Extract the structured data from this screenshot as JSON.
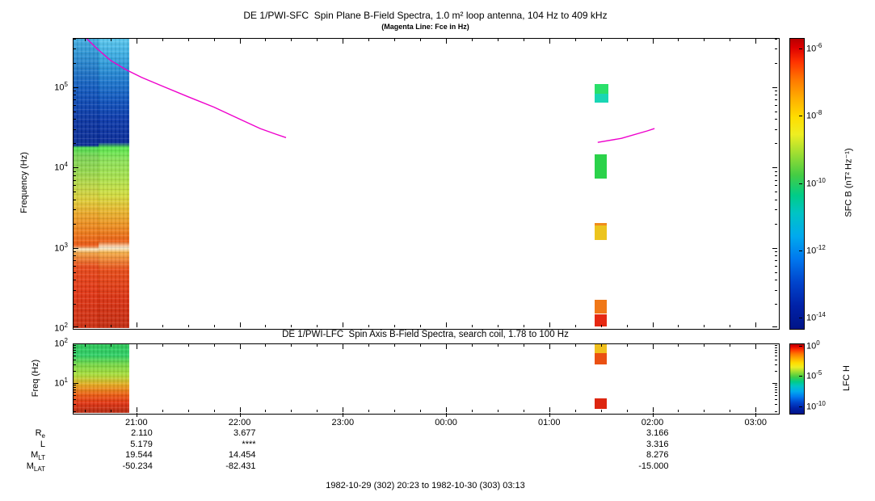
{
  "header": {
    "title": "DE 1/PWI-SFC  Spin Plane B-Field Spectra, 1.0 m² loop antenna, 104 Hz to 409 kHz",
    "subtitle": "(Magenta Line: Fce in Hz)"
  },
  "footer": {
    "date_range": "1982-10-29 (302) 20:23 to 1982-10-30 (303) 03:13"
  },
  "time_axis": {
    "start_hour": 20.383,
    "end_hour": 27.217,
    "ticks": [
      {
        "hour": 21,
        "label": "21:00"
      },
      {
        "hour": 22,
        "label": "22:00"
      },
      {
        "hour": 23,
        "label": "23:00"
      },
      {
        "hour": 24,
        "label": "00:00"
      },
      {
        "hour": 25,
        "label": "01:00"
      },
      {
        "hour": 26,
        "label": "02:00"
      },
      {
        "hour": 27,
        "label": "03:00"
      }
    ]
  },
  "chart_data": [
    {
      "type": "heatmap",
      "title": "DE 1/PWI-SFC  Spin Plane B-Field Spectra, 1.0 m² loop antenna, 104 Hz to 409 kHz",
      "subtitle": "(Magenta Line: Fce in Hz)",
      "ylabel": "Frequency (Hz)",
      "y_scale": "log",
      "freq_range": [
        100,
        409000
      ],
      "ytick_exponents": [
        2,
        3,
        4,
        5
      ],
      "x_tick_labels": [
        "21:00",
        "22:00",
        "23:00",
        "00:00",
        "01:00",
        "02:00",
        "03:00"
      ],
      "colorbar": {
        "label": "SFC B (nT² Hz⁻¹)",
        "tick_exponents": [
          -6,
          -8,
          -10,
          -12,
          -14
        ],
        "range_exp": [
          -5.7,
          -14.3
        ],
        "gradient": [
          [
            0,
            "#b80000"
          ],
          [
            0.03,
            "#dd0000"
          ],
          [
            0.08,
            "#ff3300"
          ],
          [
            0.14,
            "#ff7700"
          ],
          [
            0.2,
            "#ffaa00"
          ],
          [
            0.27,
            "#ffdd00"
          ],
          [
            0.33,
            "#eeee22"
          ],
          [
            0.4,
            "#99dd33"
          ],
          [
            0.47,
            "#44cc44"
          ],
          [
            0.54,
            "#00cc88"
          ],
          [
            0.6,
            "#00c4c4"
          ],
          [
            0.68,
            "#00aaee"
          ],
          [
            0.76,
            "#0077ee"
          ],
          [
            0.84,
            "#0044cc"
          ],
          [
            0.92,
            "#0022a8"
          ],
          [
            1,
            "#001488"
          ]
        ]
      },
      "fce_color": "#ee00cc",
      "fce_segments": [
        [
          [
            20.52,
            400000
          ],
          [
            20.62,
            300000
          ],
          [
            20.75,
            215000
          ],
          [
            20.9,
            165000
          ],
          [
            21.05,
            132000
          ],
          [
            21.25,
            103000
          ],
          [
            21.5,
            76000
          ],
          [
            21.75,
            56500
          ],
          [
            22.0,
            40000
          ],
          [
            22.2,
            30500
          ],
          [
            22.35,
            26000
          ],
          [
            22.45,
            23500
          ]
        ],
        [
          [
            25.47,
            20500
          ],
          [
            25.7,
            23000
          ],
          [
            25.95,
            28500
          ],
          [
            26.02,
            30500
          ]
        ]
      ],
      "patches": [
        {
          "t0": 20.383,
          "t1": 20.633,
          "stops": [
            [
              0,
              "#45b0e2"
            ],
            [
              0.05,
              "#2f96d6"
            ],
            [
              0.11,
              "#2078c8"
            ],
            [
              0.17,
              "#125cc0"
            ],
            [
              0.23,
              "#0d46b2"
            ],
            [
              0.29,
              "#0b34a2"
            ],
            [
              0.37,
              "#0a2c96"
            ],
            [
              0.378,
              "#4ce04c"
            ],
            [
              0.41,
              "#7cd455"
            ],
            [
              0.46,
              "#94d84e"
            ],
            [
              0.51,
              "#bcd846"
            ],
            [
              0.56,
              "#e0ce38"
            ],
            [
              0.61,
              "#eca428"
            ],
            [
              0.67,
              "#ee7c1a"
            ],
            [
              0.715,
              "#ec5814"
            ],
            [
              0.728,
              "#f8e8c0"
            ],
            [
              0.742,
              "#f0a040"
            ],
            [
              0.79,
              "#e8491a"
            ],
            [
              0.88,
              "#e23514"
            ],
            [
              1,
              "#cc2f12"
            ]
          ]
        },
        {
          "t0": 20.633,
          "t1": 20.933,
          "stops": [
            [
              0,
              "#5cc8ee"
            ],
            [
              0.05,
              "#40b2e6"
            ],
            [
              0.1,
              "#2a94d8"
            ],
            [
              0.16,
              "#1a72cc"
            ],
            [
              0.22,
              "#0f52bc"
            ],
            [
              0.28,
              "#0c3aac"
            ],
            [
              0.36,
              "#0a2c9a"
            ],
            [
              0.378,
              "#58ea4c"
            ],
            [
              0.42,
              "#8ae258"
            ],
            [
              0.48,
              "#a8e24e"
            ],
            [
              0.54,
              "#d2de40"
            ],
            [
              0.59,
              "#e8bc30"
            ],
            [
              0.65,
              "#ee8e20"
            ],
            [
              0.7,
              "#ec6014"
            ],
            [
              0.724,
              "#f8ecd0"
            ],
            [
              0.74,
              "#f4ae48"
            ],
            [
              0.8,
              "#e84c18"
            ],
            [
              0.9,
              "#dc3212"
            ],
            [
              1,
              "#c42c10"
            ]
          ]
        }
      ],
      "blocks": [
        {
          "t0": 25.44,
          "t1": 25.57,
          "f0": 82000,
          "f1": 108000,
          "color": "#2ae06a"
        },
        {
          "t0": 25.44,
          "t1": 25.57,
          "f0": 64000,
          "f1": 82000,
          "color": "#19d6b4"
        },
        {
          "t0": 25.44,
          "t1": 25.56,
          "f0": 7200,
          "f1": 14500,
          "color": "#2bd24a"
        },
        {
          "t0": 25.44,
          "t1": 25.56,
          "f0": 1900,
          "f1": 2050,
          "color": "#f08c1c"
        },
        {
          "t0": 25.44,
          "t1": 25.56,
          "f0": 1250,
          "f1": 1900,
          "color": "#ecc41e"
        },
        {
          "t0": 25.44,
          "t1": 25.56,
          "f0": 152,
          "f1": 225,
          "color": "#f07818"
        },
        {
          "t0": 25.44,
          "t1": 25.56,
          "f0": 104,
          "f1": 148,
          "color": "#e62812"
        }
      ]
    },
    {
      "type": "heatmap",
      "title": "DE 1/PWI-LFC  Spin Axis B-Field Spectra, search coil, 1.78 to 100 Hz",
      "ylabel": "Freq (Hz)",
      "y_scale": "log",
      "freq_range": [
        1.78,
        100
      ],
      "ytick_exponents": [
        1,
        2
      ],
      "x_tick_labels": [
        "21:00",
        "22:00",
        "23:00",
        "00:00",
        "01:00",
        "02:00",
        "03:00"
      ],
      "colorbar": {
        "label": "LFC H",
        "tick_exponents": [
          0,
          -5,
          -10
        ],
        "range_exp": [
          0.4,
          -11.1
        ],
        "gradient": [
          [
            0,
            "#b80000"
          ],
          [
            0.03,
            "#dd0000"
          ],
          [
            0.08,
            "#ff3300"
          ],
          [
            0.14,
            "#ff7700"
          ],
          [
            0.2,
            "#ffaa00"
          ],
          [
            0.27,
            "#ffdd00"
          ],
          [
            0.33,
            "#eeee22"
          ],
          [
            0.4,
            "#99dd33"
          ],
          [
            0.47,
            "#44cc44"
          ],
          [
            0.54,
            "#00cc88"
          ],
          [
            0.6,
            "#00c4c4"
          ],
          [
            0.68,
            "#00aaee"
          ],
          [
            0.76,
            "#0077ee"
          ],
          [
            0.84,
            "#0044cc"
          ],
          [
            0.92,
            "#0022a8"
          ],
          [
            1,
            "#001488"
          ]
        ]
      },
      "patches": [
        {
          "t0": 20.383,
          "t1": 20.933,
          "stops": [
            [
              0,
              "#2ec858"
            ],
            [
              0.17,
              "#2ed066"
            ],
            [
              0.3,
              "#74d846"
            ],
            [
              0.46,
              "#aede3a"
            ],
            [
              0.6,
              "#e8a820"
            ],
            [
              0.74,
              "#ec5c12"
            ],
            [
              0.86,
              "#e23412"
            ],
            [
              1,
              "#b42a10"
            ]
          ]
        }
      ],
      "blocks": [
        {
          "t0": 25.44,
          "t1": 25.56,
          "f0": 58,
          "f1": 100,
          "color": "#f0c01e"
        },
        {
          "t0": 25.44,
          "t1": 25.56,
          "f0": 30,
          "f1": 56,
          "color": "#ea5012"
        },
        {
          "t0": 25.44,
          "t1": 25.56,
          "f0": 2.3,
          "f1": 4.2,
          "color": "#dd2610"
        }
      ]
    }
  ],
  "ephemeris": {
    "rows": [
      {
        "label_main": "R",
        "label_sub": "e",
        "values": [
          {
            "hour": 21,
            "text": "2.110"
          },
          {
            "hour": 22,
            "text": "3.677"
          },
          {
            "hour": 26,
            "text": "3.166"
          }
        ]
      },
      {
        "label_main": "L",
        "label_sub": "",
        "values": [
          {
            "hour": 21,
            "text": "5.179"
          },
          {
            "hour": 22,
            "text": "****"
          },
          {
            "hour": 26,
            "text": "3.316"
          }
        ]
      },
      {
        "label_main": "M",
        "label_sub": "LT",
        "values": [
          {
            "hour": 21,
            "text": "19.544"
          },
          {
            "hour": 22,
            "text": "14.454"
          },
          {
            "hour": 26,
            "text": "8.276"
          }
        ]
      },
      {
        "label_main": "M",
        "label_sub": "LAT",
        "values": [
          {
            "hour": 21,
            "text": "-50.234"
          },
          {
            "hour": 22,
            "text": "-82.431"
          },
          {
            "hour": 26,
            "text": "-15.000"
          }
        ]
      }
    ]
  }
}
